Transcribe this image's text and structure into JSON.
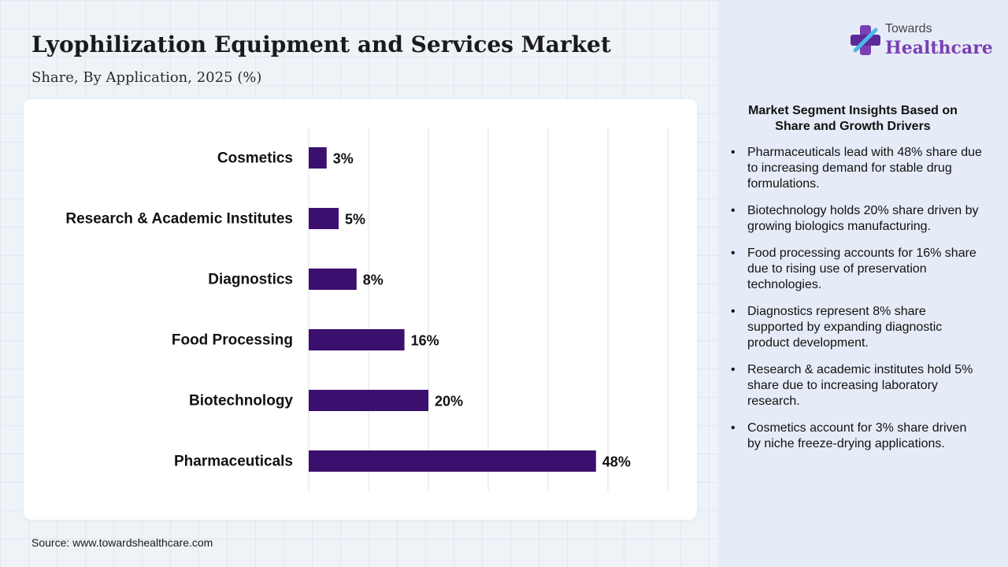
{
  "header": {
    "title": "Lyophilization Equipment and Services Market",
    "subtitle": "Share, By Application, 2025 (%)"
  },
  "logo": {
    "top": "Towards",
    "main": "Healthcare",
    "icon": "cross-plus-icon"
  },
  "source": "Source: www.towardshealthcare.com",
  "colors": {
    "bar": "#3b0f6e",
    "accent": "#7a3fb5"
  },
  "chart_data": {
    "type": "bar",
    "orientation": "horizontal",
    "categories": [
      "Cosmetics",
      "Research & Academic Institutes",
      "Diagnostics",
      "Food Processing",
      "Biotechnology",
      "Pharmaceuticals"
    ],
    "values": [
      3,
      5,
      8,
      16,
      20,
      48
    ],
    "value_labels": [
      "3%",
      "5%",
      "8%",
      "16%",
      "20%",
      "48%"
    ],
    "xlim": [
      0,
      60
    ],
    "grid": true,
    "legend": "none"
  },
  "insights": {
    "title": "Market Segment Insights Based on Share and Growth Drivers",
    "items": [
      "Pharmaceuticals lead with 48% share due to increasing demand for stable drug formulations.",
      "Biotechnology holds 20% share driven by growing biologics manufacturing.",
      "Food processing accounts for 16% share due to rising use of preservation technologies.",
      "Diagnostics represent 8% share supported by expanding diagnostic product development.",
      "Research & academic institutes hold 5% share due to increasing laboratory research.",
      "Cosmetics account for 3% share driven by niche freeze-drying applications."
    ]
  }
}
